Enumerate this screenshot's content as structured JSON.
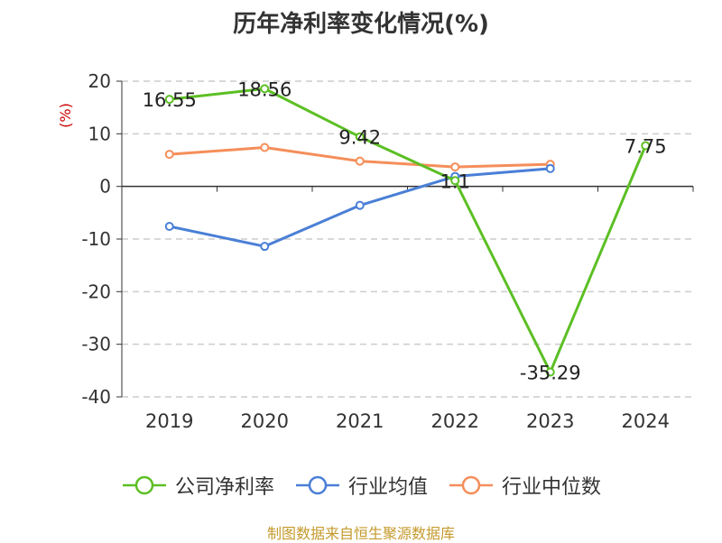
{
  "title": "历年净利率变化情况(%)",
  "source": "制图数据来自恒生聚源数据库",
  "chart_data": {
    "type": "line",
    "ylabel": "(%)",
    "ylim": [
      -40,
      20
    ],
    "yticks": [
      20,
      10,
      0,
      -10,
      -20,
      -30,
      -40
    ],
    "categories": [
      "2019",
      "2020",
      "2021",
      "2022",
      "2023",
      "2024"
    ],
    "grid": true,
    "legend_position": "bottom",
    "series": [
      {
        "name": "公司净利率",
        "color": "#5cbf24",
        "values": [
          16.55,
          18.56,
          9.42,
          1.1,
          -35.29,
          7.75
        ],
        "labels": [
          "16.55",
          "18.56",
          "9.42",
          "1.1",
          "-35.29",
          "7.75"
        ]
      },
      {
        "name": "行业均值",
        "color": "#4a7fd6",
        "values": [
          -7.6,
          -11.4,
          -3.6,
          1.9,
          3.4,
          null
        ]
      },
      {
        "name": "行业中位数",
        "color": "#f58e5a",
        "values": [
          6.1,
          7.4,
          4.8,
          3.7,
          4.2,
          null
        ]
      }
    ]
  }
}
